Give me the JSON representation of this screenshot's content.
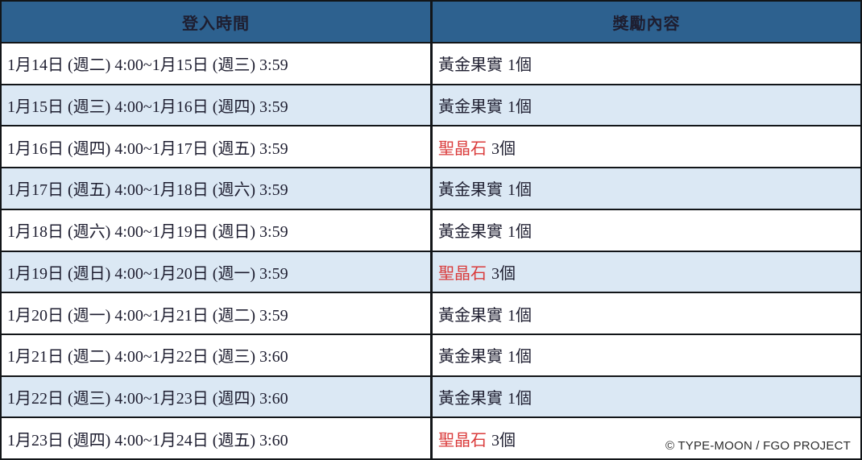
{
  "table": {
    "columns": [
      {
        "label": "登入時間"
      },
      {
        "label": "獎勵內容"
      }
    ],
    "rows": [
      {
        "time": "1月14日 (週二) 4:00~1月15日 (週三) 3:59",
        "reward_name": "黃金果實",
        "reward_qty": "1個",
        "highlight": false,
        "shaded": false
      },
      {
        "time": "1月15日 (週三) 4:00~1月16日 (週四) 3:59",
        "reward_name": "黃金果實",
        "reward_qty": "1個",
        "highlight": false,
        "shaded": true
      },
      {
        "time": "1月16日 (週四) 4:00~1月17日 (週五) 3:59",
        "reward_name": "聖晶石",
        "reward_qty": "3個",
        "highlight": true,
        "shaded": false
      },
      {
        "time": "1月17日 (週五) 4:00~1月18日 (週六) 3:59",
        "reward_name": "黃金果實",
        "reward_qty": "1個",
        "highlight": false,
        "shaded": true
      },
      {
        "time": "1月18日 (週六) 4:00~1月19日 (週日) 3:59",
        "reward_name": "黃金果實",
        "reward_qty": "1個",
        "highlight": false,
        "shaded": false
      },
      {
        "time": "1月19日 (週日) 4:00~1月20日 (週一) 3:59",
        "reward_name": "聖晶石",
        "reward_qty": "3個",
        "highlight": true,
        "shaded": true
      },
      {
        "time": "1月20日 (週一) 4:00~1月21日 (週二) 3:59",
        "reward_name": "黃金果實",
        "reward_qty": "1個",
        "highlight": false,
        "shaded": false
      },
      {
        "time": "1月21日 (週二) 4:00~1月22日 (週三) 3:60",
        "reward_name": "黃金果實",
        "reward_qty": "1個",
        "highlight": false,
        "shaded": false
      },
      {
        "time": "1月22日 (週三) 4:00~1月23日 (週四) 3:60",
        "reward_name": "黃金果實",
        "reward_qty": "1個",
        "highlight": false,
        "shaded": true
      },
      {
        "time": "1月23日 (週四) 4:00~1月24日 (週五) 3:60",
        "reward_name": "聖晶石",
        "reward_qty": "3個",
        "highlight": true,
        "shaded": false
      }
    ]
  },
  "footer": {
    "copyright": "© TYPE-MOON / FGO PROJECT"
  },
  "colors": {
    "header_bg": "#2d618f",
    "header_text": "#ffffff",
    "row_shaded_bg": "#dbe8f4",
    "row_bg": "#ffffff",
    "body_text": "#1e1e30",
    "reward_highlight": "#da3b3b",
    "grid_border": "#121518",
    "copyright_text": "#2d2d2d"
  }
}
